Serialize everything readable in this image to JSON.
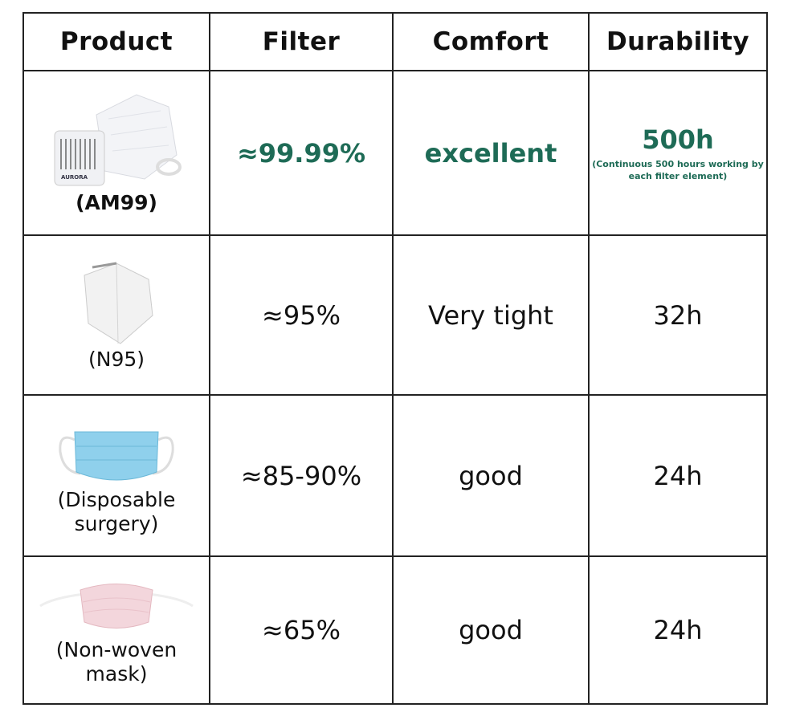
{
  "headers": [
    "Product",
    "Filter",
    "Comfort",
    "Durability"
  ],
  "rows": [
    {
      "product": "(AM99)",
      "image": "aurora-am99-mask",
      "logo_text": "AURORA",
      "filter": "≈99.99%",
      "comfort": "excellent",
      "durability": "500h",
      "durability_note": "(Continuous 500 hours working by each filter element)",
      "highlight": true
    },
    {
      "product": "(N95)",
      "image": "n95-mask",
      "filter": "≈95%",
      "comfort": "Very tight",
      "durability": "32h",
      "highlight": false
    },
    {
      "product": "(Disposable surgery)",
      "image": "surgical-mask",
      "filter": "≈85-90%",
      "comfort": "good",
      "durability": "24h",
      "highlight": false
    },
    {
      "product": "(Non-woven mask)",
      "image": "non-woven-mask",
      "filter": "≈65%",
      "comfort": "good",
      "durability": "24h",
      "highlight": false
    }
  ],
  "colors": {
    "highlight": "#1e6b56",
    "border": "#222222"
  }
}
